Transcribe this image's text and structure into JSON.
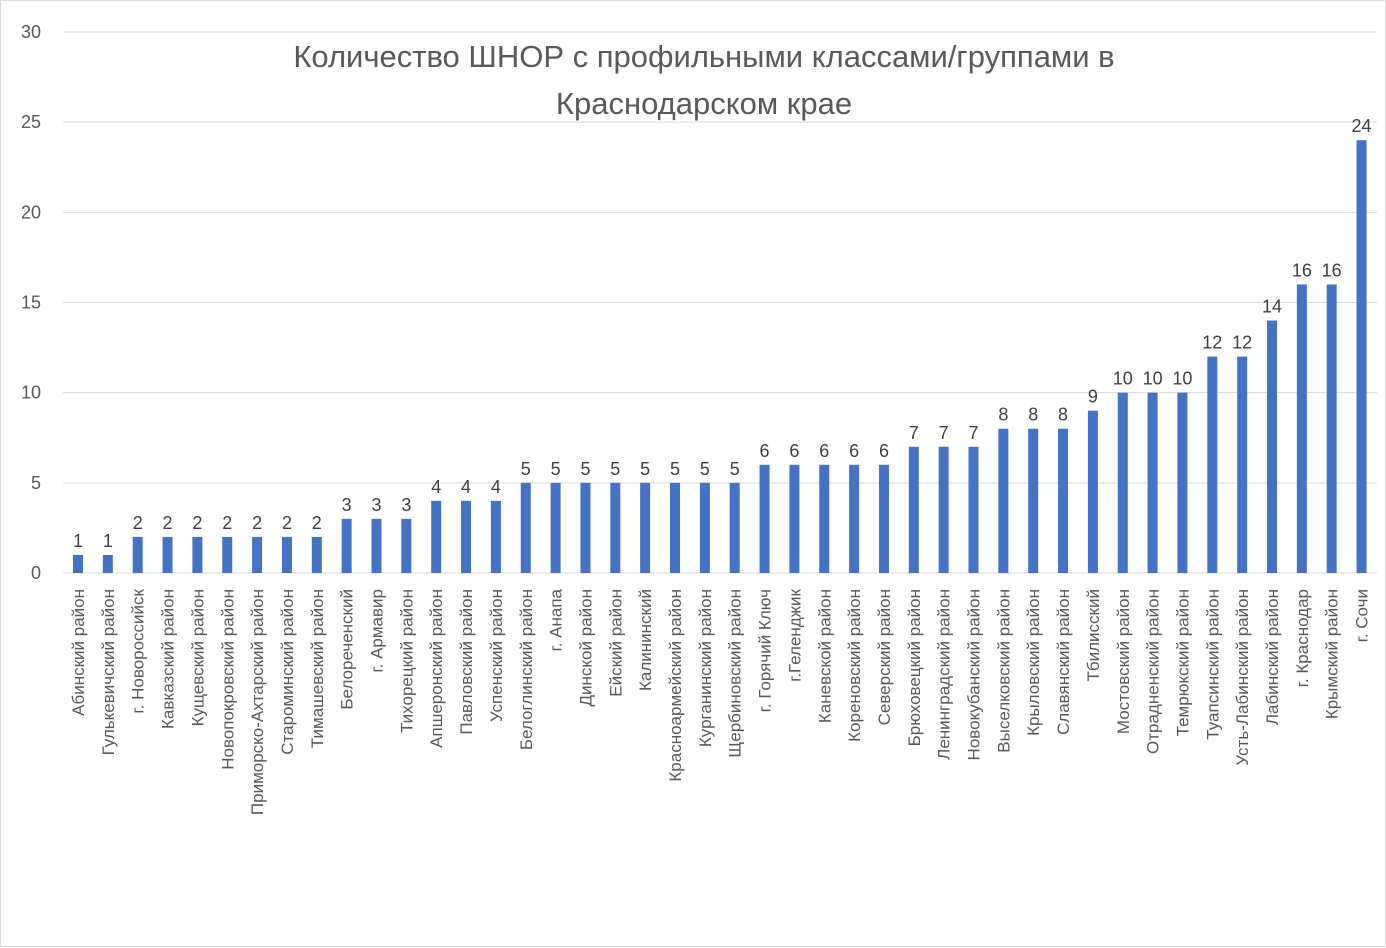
{
  "chart_data": {
    "type": "bar",
    "title_lines": [
      "Количество ШНОР с профильными классами/группами в",
      "Краснодарском крае"
    ],
    "xlabel": "",
    "ylabel": "",
    "ylim": [
      0,
      30
    ],
    "yticks": [
      0,
      5,
      10,
      15,
      20,
      25,
      30
    ],
    "grid": true,
    "legend": "none",
    "bar_color": "#4472c4",
    "categories": [
      "Абинский район",
      "Гулькевичский район",
      "г. Новороссийск",
      "Кавказский район",
      "Кущевский район",
      "Новопокровский район",
      "Приморско-Ахтарский район",
      "Староминский район",
      "Тимашевский район",
      "Белореченский",
      "г. Армавир",
      "Тихорецкий район",
      "Апшеронский район",
      "Павловский район",
      "Успенский район",
      "Белоглинский район",
      "г. Анапа",
      "Динской район",
      "Ейский район",
      "Калининский",
      "Красноармейский район",
      "Курганинский район",
      "Щербиновский район",
      "г. Горячий Ключ",
      "г.Геленджик",
      "Каневской район",
      "Кореновский район",
      "Северский район",
      "Брюховецкий район",
      "Ленинградский район",
      "Новокубанский район",
      "Выселковский район",
      "Крыловский район",
      "Славянский район",
      "Тбилисский",
      "Мостовский район",
      "Отрадненский район",
      "Темрюкский район",
      "Туапсинский район",
      "Усть-Лабинский район",
      "Лабинский район",
      "г. Краснодар",
      "Крымский район",
      "г. Сочи"
    ],
    "values": [
      1,
      1,
      2,
      2,
      2,
      2,
      2,
      2,
      2,
      3,
      3,
      3,
      4,
      4,
      4,
      5,
      5,
      5,
      5,
      5,
      5,
      5,
      5,
      6,
      6,
      6,
      6,
      6,
      7,
      7,
      7,
      8,
      8,
      8,
      9,
      10,
      10,
      10,
      12,
      12,
      14,
      16,
      16,
      24
    ]
  }
}
